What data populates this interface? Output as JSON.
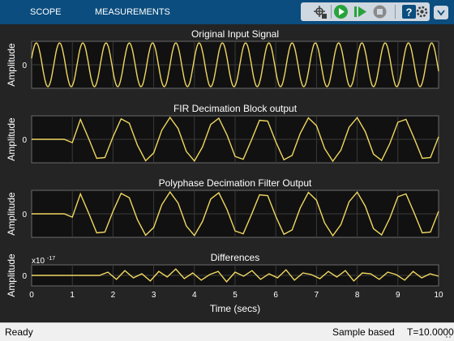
{
  "toolbar": {
    "tabs": [
      "SCOPE",
      "MEASUREMENTS"
    ],
    "buttons": [
      "signal-selector-icon",
      "run-icon",
      "step-forward-icon",
      "stop-icon",
      "help-icon",
      "settings-icon"
    ],
    "colors": {
      "bar": "#0b4d7e",
      "run": "#27a33b",
      "stop": "#8a8a8a"
    }
  },
  "status": {
    "left": "Ready",
    "mode": "Sample based",
    "time": "T=10.0000"
  },
  "chart_data": [
    {
      "type": "line",
      "title": "Original Input Signal",
      "ylabel": "Amplitude",
      "xlim": [
        0,
        10
      ],
      "yticks": [
        "0"
      ],
      "series": [
        {
          "color": "#f0d860",
          "kind": "sine",
          "cycles": 17.5,
          "amplitude": 1
        }
      ]
    },
    {
      "type": "line",
      "title": "FIR Decimation Block output",
      "ylabel": "Amplitude",
      "xlim": [
        0,
        10
      ],
      "yticks": [
        "0"
      ],
      "series": [
        {
          "color": "#f0d860",
          "kind": "decimated",
          "delay": 1.0,
          "step": 0.2,
          "cycles": 8.75,
          "amplitude": 1
        }
      ]
    },
    {
      "type": "line",
      "title": "Polyphase Decimation Filter Output",
      "ylabel": "Amplitude",
      "xlim": [
        0,
        10
      ],
      "yticks": [
        "0"
      ],
      "series": [
        {
          "color": "#f0d860",
          "kind": "decimated",
          "delay": 1.0,
          "step": 0.2,
          "cycles": 8.75,
          "amplitude": 1
        }
      ]
    },
    {
      "type": "line",
      "title": "Differences",
      "ylabel": "Amplitude",
      "exponent": "x10",
      "exponent_power": "-17",
      "xlim": [
        0,
        10
      ],
      "xlabel": "Time (secs)",
      "xticks": [
        "0",
        "1",
        "2",
        "3",
        "4",
        "5",
        "6",
        "7",
        "8",
        "9",
        "10"
      ],
      "yticks": [
        "0"
      ],
      "series": [
        {
          "color": "#f0d860",
          "kind": "noise",
          "values": [
            0,
            0,
            0,
            0,
            0,
            0,
            0,
            0,
            0,
            0.4,
            -0.5,
            0.6,
            -0.3,
            0.2,
            -0.7,
            0.5,
            -0.2,
            0.8,
            -0.4,
            0.3,
            -0.6,
            0.1,
            0.5,
            -0.8,
            0.4,
            -0.1,
            0.6,
            -0.5,
            0.2,
            -0.3,
            0.7,
            -0.6,
            0.3,
            0.1,
            -0.4,
            0.5,
            -0.2,
            0.6,
            -0.7,
            0.3,
            0.2,
            -0.5,
            0.4,
            0.1,
            -0.6,
            0.5,
            -0.3,
            0.2,
            -0.1
          ]
        }
      ]
    }
  ]
}
